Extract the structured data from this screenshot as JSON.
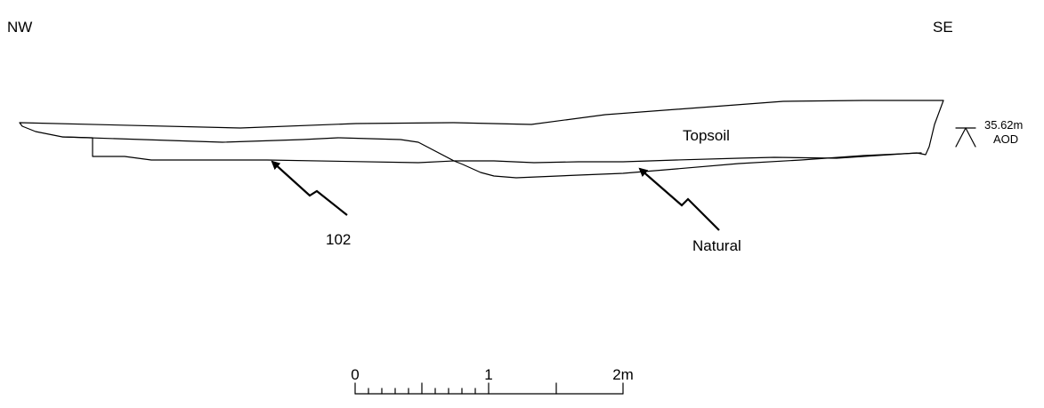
{
  "orientation": {
    "left": "NW",
    "right": "SE"
  },
  "datum": {
    "level": "35.62m",
    "unit": "AOD"
  },
  "layers": {
    "topsoil": "Topsoil"
  },
  "annotations": {
    "context_102": "102",
    "natural": "Natural"
  },
  "scale_bar": {
    "tick_0": "0",
    "tick_1": "1",
    "tick_2": "2m"
  }
}
